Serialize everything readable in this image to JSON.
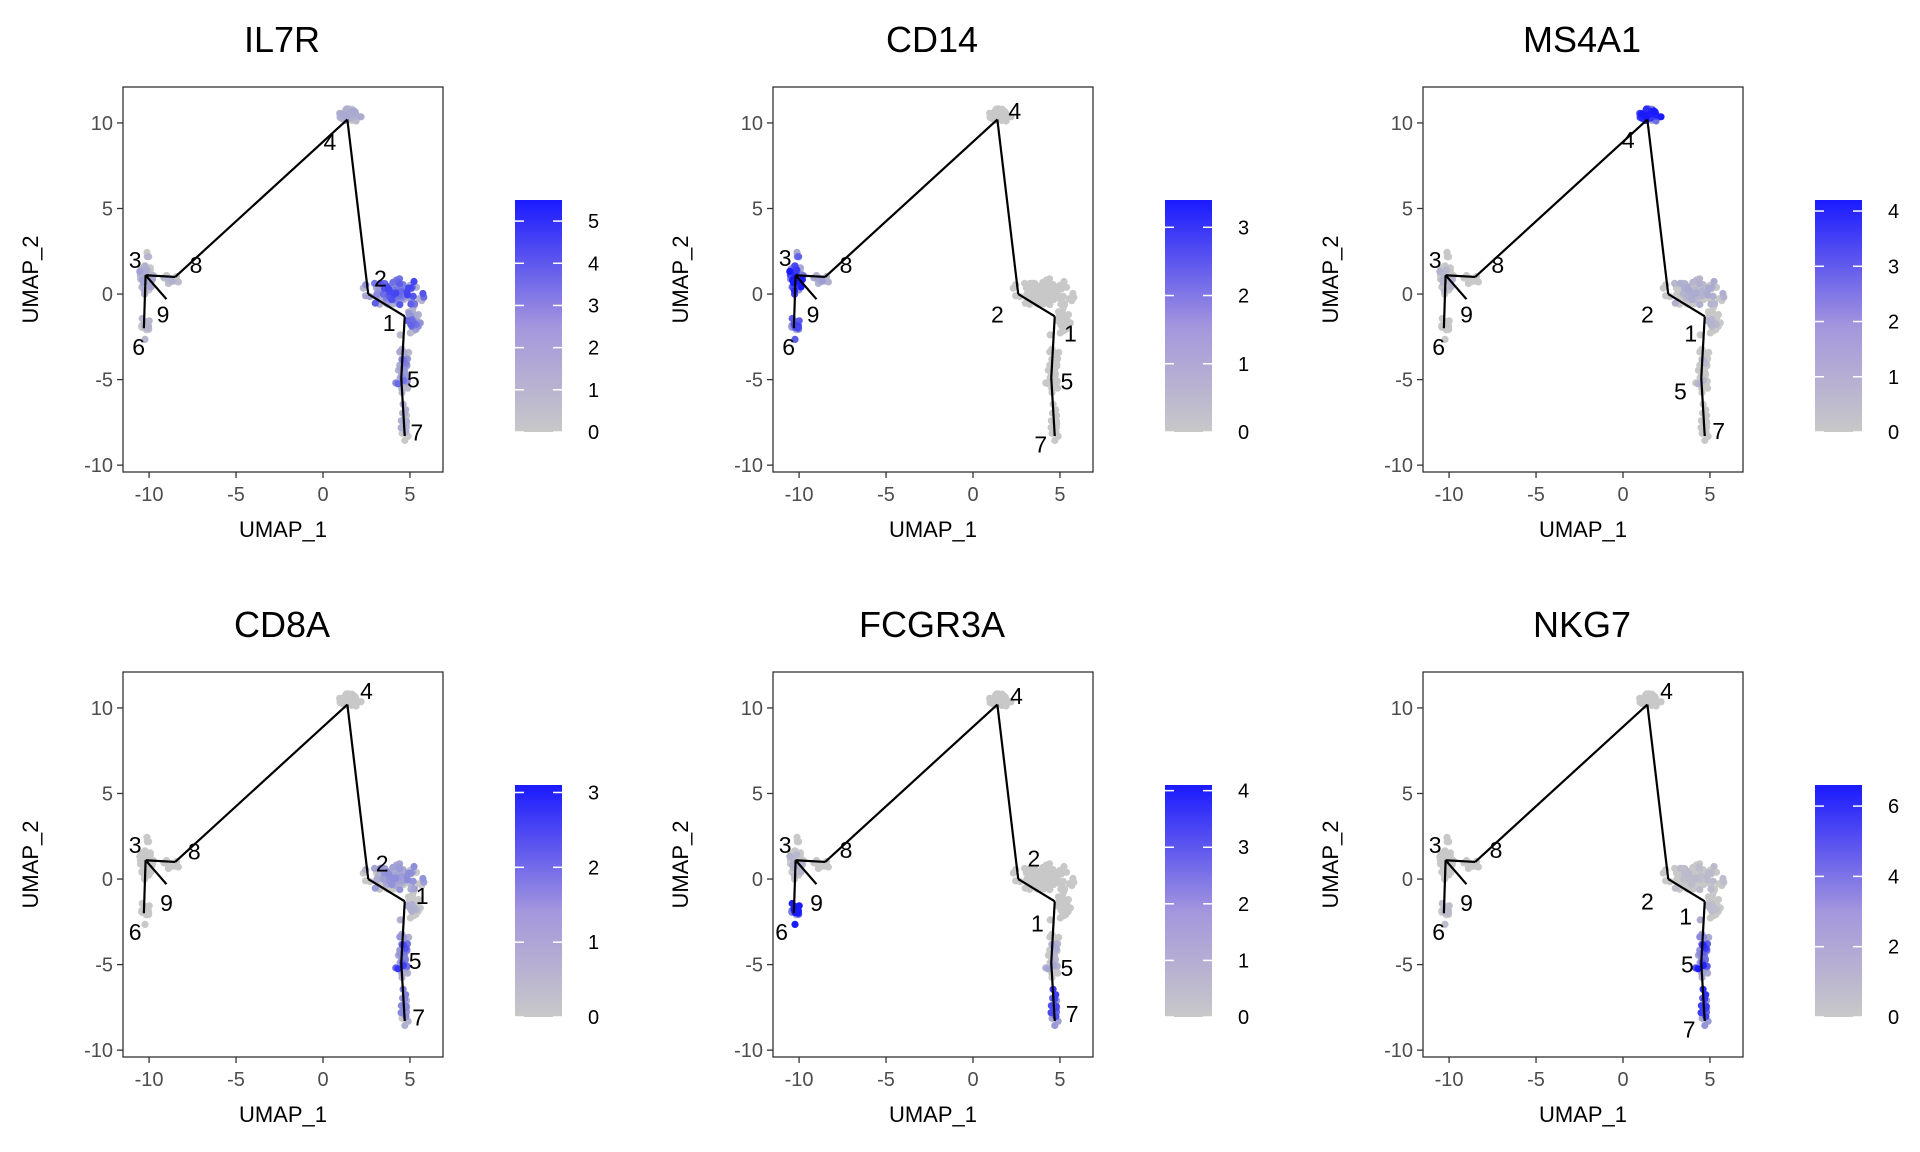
{
  "chart_data": {
    "type": "scatter",
    "xlabel": "UMAP_1",
    "ylabel": "UMAP_2",
    "xlim": [
      -11.5,
      6.9
    ],
    "ylim": [
      -10.4,
      12.1
    ],
    "x_ticks": [
      "-10",
      "-5",
      "0",
      "5"
    ],
    "y_ticks": [
      "-10",
      "-5",
      "0",
      "5",
      "10"
    ],
    "colors": {
      "low": "#c8c8c8",
      "high": "#1a1aff",
      "point": "#c8c8c8",
      "trajectory": "#000000"
    },
    "cell_clusters": [
      {
        "x": 1.5,
        "y": 10.5,
        "sx": 0.45,
        "sy": 0.35,
        "n": 70
      },
      {
        "x": -10.2,
        "y": 1.0,
        "sx": 0.35,
        "sy": 0.9,
        "n": 65
      },
      {
        "x": -8.7,
        "y": 0.9,
        "sx": 0.5,
        "sy": 0.25,
        "n": 15
      },
      {
        "x": -10.2,
        "y": -1.8,
        "sx": 0.25,
        "sy": 0.6,
        "n": 20
      },
      {
        "x": 4.2,
        "y": 0.1,
        "sx": 1.1,
        "sy": 0.55,
        "n": 140
      },
      {
        "x": 5.2,
        "y": -1.5,
        "sx": 0.4,
        "sy": 0.6,
        "n": 30
      },
      {
        "x": 4.6,
        "y": -4.5,
        "sx": 0.3,
        "sy": 1.1,
        "n": 55
      },
      {
        "x": 4.7,
        "y": -7.5,
        "sx": 0.22,
        "sy": 0.7,
        "n": 25
      }
    ],
    "trajectory": {
      "nodes": [
        {
          "id": "1",
          "x": 4.7,
          "y": -1.3
        },
        {
          "id": "2",
          "x": 2.6,
          "y": 0.0
        },
        {
          "id": "3",
          "x": -10.2,
          "y": 1.1
        },
        {
          "id": "4",
          "x": 1.4,
          "y": 10.2
        },
        {
          "id": "5",
          "x": 4.5,
          "y": -4.9
        },
        {
          "id": "6",
          "x": -10.3,
          "y": -2.0
        },
        {
          "id": "7",
          "x": 4.7,
          "y": -8.3
        },
        {
          "id": "8",
          "x": -8.5,
          "y": 1.0
        },
        {
          "id": "9",
          "x": -9.0,
          "y": -0.3
        }
      ],
      "edges": [
        [
          "1",
          "2"
        ],
        [
          "2",
          "4"
        ],
        [
          "4",
          "8"
        ],
        [
          "8",
          "3"
        ],
        [
          "3",
          "6"
        ],
        [
          "3",
          "9"
        ],
        [
          "1",
          "5"
        ],
        [
          "5",
          "7"
        ]
      ]
    },
    "panels": [
      {
        "title": "IL7R",
        "legend_ticks": [
          0,
          1,
          2,
          3,
          4,
          5
        ],
        "legend_max": 5.5,
        "cluster_expression": [
          0.6,
          0.7,
          0.5,
          0.4,
          2.4,
          2.0,
          1.8,
          0.7
        ],
        "label_offsets": {
          "1": [
            -0.9,
            -0.4
          ],
          "2": [
            0.7,
            0.9
          ],
          "3": [
            -0.6,
            0.9
          ],
          "4": [
            -1.0,
            -1.3
          ],
          "5": [
            0.7,
            -0.1
          ],
          "6": [
            -0.3,
            -1.1
          ],
          "7": [
            0.7,
            0.2
          ],
          "8": [
            1.2,
            0.7
          ],
          "9": [
            -0.2,
            -0.9
          ]
        }
      },
      {
        "title": "CD14",
        "legend_ticks": [
          0,
          1,
          2,
          3
        ],
        "legend_max": 3.4,
        "cluster_expression": [
          0.1,
          2.4,
          0.6,
          1.5,
          0.1,
          0.2,
          0.1,
          0.1
        ],
        "label_offsets": {
          "1": [
            0.9,
            -1.0
          ],
          "2": [
            -1.2,
            -1.2
          ],
          "3": [
            -0.6,
            1.0
          ],
          "4": [
            1.0,
            0.5
          ],
          "5": [
            0.9,
            -0.2
          ],
          "6": [
            -0.3,
            -1.1
          ],
          "7": [
            -0.8,
            -0.5
          ],
          "8": [
            1.2,
            0.7
          ],
          "9": [
            -0.2,
            -0.9
          ]
        }
      },
      {
        "title": "MS4A1",
        "legend_ticks": [
          0,
          1,
          2,
          3,
          4
        ],
        "legend_max": 4.2,
        "cluster_expression": [
          2.8,
          0.3,
          0.2,
          0.2,
          0.4,
          0.3,
          0.3,
          0.1
        ],
        "label_offsets": {
          "1": [
            -0.8,
            -1.0
          ],
          "2": [
            -1.2,
            -1.2
          ],
          "3": [
            -0.6,
            0.9
          ],
          "4": [
            -1.1,
            -1.2
          ],
          "5": [
            -1.2,
            -0.8
          ],
          "6": [
            -0.3,
            -1.1
          ],
          "7": [
            0.8,
            0.3
          ],
          "8": [
            1.3,
            0.7
          ],
          "9": [
            0.0,
            -0.9
          ]
        }
      },
      {
        "title": "CD8A",
        "legend_ticks": [
          0,
          1,
          2,
          3
        ],
        "legend_max": 3.1,
        "cluster_expression": [
          0.1,
          0.2,
          0.1,
          0.1,
          0.6,
          0.3,
          1.6,
          1.0
        ],
        "label_offsets": {
          "1": [
            1.0,
            0.3
          ],
          "2": [
            0.8,
            0.9
          ],
          "3": [
            -0.6,
            0.9
          ],
          "4": [
            1.1,
            0.8
          ],
          "5": [
            0.8,
            0.1
          ],
          "6": [
            -0.5,
            -1.1
          ],
          "7": [
            0.8,
            0.2
          ],
          "8": [
            1.1,
            0.6
          ],
          "9": [
            0.0,
            -1.1
          ]
        }
      },
      {
        "title": "FCGR3A",
        "legend_ticks": [
          0,
          1,
          2,
          3,
          4
        ],
        "legend_max": 4.1,
        "cluster_expression": [
          0.1,
          0.3,
          0.1,
          3.0,
          0.1,
          0.1,
          0.5,
          2.6
        ],
        "label_offsets": {
          "1": [
            -1.0,
            -1.3
          ],
          "2": [
            0.9,
            1.2
          ],
          "3": [
            -0.6,
            0.9
          ],
          "4": [
            1.1,
            0.5
          ],
          "5": [
            0.9,
            -0.3
          ],
          "6": [
            -0.7,
            -1.1
          ],
          "7": [
            1.0,
            0.4
          ],
          "8": [
            1.2,
            0.7
          ],
          "9": [
            0.0,
            -1.1
          ]
        }
      },
      {
        "title": "NKG7",
        "legend_ticks": [
          0,
          2,
          4,
          6
        ],
        "legend_max": 6.6,
        "cluster_expression": [
          0.2,
          0.2,
          0.2,
          0.3,
          0.3,
          0.3,
          4.2,
          4.6
        ],
        "label_offsets": {
          "1": [
            -1.1,
            -0.9
          ],
          "2": [
            -1.2,
            -1.3
          ],
          "3": [
            -0.6,
            0.9
          ],
          "4": [
            1.1,
            0.8
          ],
          "5": [
            -0.8,
            -0.1
          ],
          "6": [
            -0.3,
            -1.1
          ],
          "7": [
            -0.9,
            -0.5
          ],
          "8": [
            1.2,
            0.7
          ],
          "9": [
            0.0,
            -1.1
          ]
        }
      }
    ]
  }
}
